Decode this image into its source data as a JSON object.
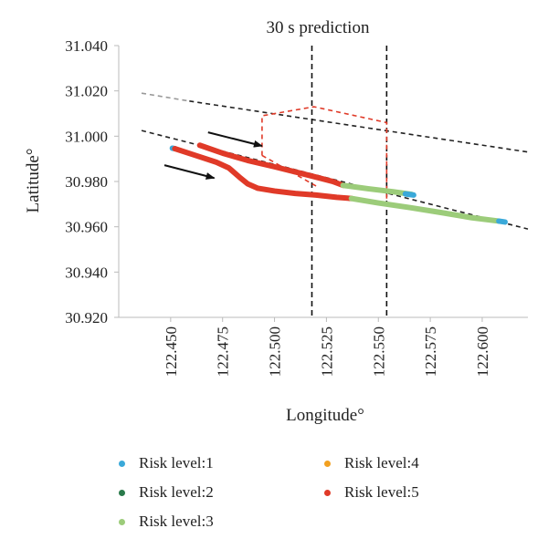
{
  "chart_data": {
    "type": "scatter",
    "title": "30 s prediction",
    "xlabel": "Longitude°",
    "ylabel": "Latitude°",
    "xlim": [
      122.425,
      122.622
    ],
    "ylim": [
      30.92,
      31.04
    ],
    "x_ticks": [
      "122.450",
      "122.475",
      "122.500",
      "122.525",
      "122.550",
      "122.575",
      "122.600"
    ],
    "y_ticks": [
      "31.040",
      "31.020",
      "31.000",
      "30.980",
      "30.960",
      "30.940",
      "30.920"
    ],
    "grid": false,
    "legend_position": "bottom",
    "legend": [
      {
        "label": "Risk level:1",
        "color": "#3aa9d9"
      },
      {
        "label": "Risk level:2",
        "color": "#2a7a4b"
      },
      {
        "label": "Risk level:3",
        "color": "#9ccc7a"
      },
      {
        "label": "Risk level:4",
        "color": "#f2a020"
      },
      {
        "label": "Risk level:5",
        "color": "#e03a28"
      }
    ],
    "series": [
      {
        "segments": [
          {
            "level": 1,
            "x": [
              122.4508,
              122.452
            ],
            "y": [
              30.9947,
              30.9945
            ]
          },
          {
            "level": 5,
            "x": [
              122.452,
              122.462,
              122.472,
              122.478,
              122.483,
              122.487,
              122.492,
              122.5,
              122.51,
              122.52,
              122.53,
              122.537
            ],
            "y": [
              30.9945,
              30.9915,
              30.9885,
              30.986,
              30.982,
              30.979,
              30.977,
              30.9758,
              30.9747,
              30.974,
              30.973,
              30.9725
            ]
          },
          {
            "level": 3,
            "x": [
              122.537,
              122.55,
              122.565,
              122.58,
              122.595,
              122.608
            ],
            "y": [
              30.9725,
              30.9705,
              30.9685,
              30.9663,
              30.964,
              30.9625
            ]
          },
          {
            "level": 1,
            "x": [
              122.608,
              122.611
            ],
            "y": [
              30.9625,
              30.9621
            ]
          }
        ]
      },
      {
        "segments": [
          {
            "level": 5,
            "x": [
              122.464,
              122.475,
              122.487,
              122.5,
              122.511,
              122.521,
              122.528,
              122.533
            ],
            "y": [
              30.996,
              30.9925,
              30.9893,
              30.9865,
              30.984,
              30.9817,
              30.98,
              30.9783
            ]
          },
          {
            "level": 3,
            "x": [
              122.533,
              122.545,
              122.557,
              122.566
            ],
            "y": [
              30.9783,
              30.9768,
              30.9755,
              30.9743
            ]
          },
          {
            "level": 1,
            "x": [
              122.563,
              122.567
            ],
            "y": [
              30.9745,
              30.974
            ]
          }
        ]
      }
    ],
    "reference_lines": [
      {
        "style": "dashed",
        "color": "#999999",
        "x": [
          122.436,
          122.459
        ],
        "y": [
          31.019,
          31.0155
        ]
      },
      {
        "style": "dashed",
        "color": "#222222",
        "x": [
          122.459,
          122.622
        ],
        "y": [
          31.0155,
          30.993
        ]
      },
      {
        "style": "dashed",
        "color": "#222222",
        "x": [
          122.436,
          122.622
        ],
        "y": [
          31.0025,
          30.959
        ]
      },
      {
        "style": "dashed",
        "color": "#111111",
        "x": [
          122.518,
          122.518
        ],
        "y": [
          31.04,
          30.92
        ]
      },
      {
        "style": "dashed",
        "color": "#111111",
        "x": [
          122.554,
          122.554
        ],
        "y": [
          31.04,
          30.92
        ]
      },
      {
        "style": "dashed",
        "color": "#e03a28",
        "x": [
          122.494,
          122.494,
          122.519,
          122.554,
          122.554
        ],
        "y": [
          30.9915,
          31.009,
          31.013,
          31.006,
          30.97
        ]
      },
      {
        "style": "dashed",
        "color": "#e03a28",
        "x": [
          122.494,
          122.52
        ],
        "y": [
          30.9915,
          30.978
        ]
      }
    ],
    "annotations": [
      {
        "type": "arrow",
        "x": [
          122.468,
          122.494
        ],
        "y": [
          31.0017,
          30.9957
        ]
      },
      {
        "type": "arrow",
        "x": [
          122.447,
          122.471
        ],
        "y": [
          30.9872,
          30.9815
        ]
      }
    ]
  }
}
